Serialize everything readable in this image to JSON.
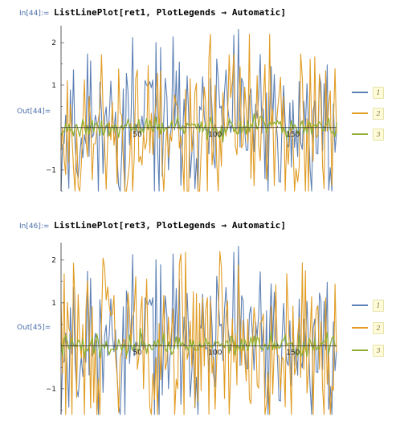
{
  "notebook": {
    "cells": [
      {
        "in_label": "In[44]:=",
        "code": "ListLinePlot[ret1, PlotLegends → Automatic]",
        "out_label": "Out[44]=",
        "plot": {
          "x_ticks": [
            "50",
            "100",
            "150"
          ],
          "y_ticks": [
            "2",
            "1",
            "−1"
          ],
          "legend": [
            "1",
            "2",
            "3"
          ]
        }
      },
      {
        "in_label": "In[46]:=",
        "code": "ListLinePlot[ret3, PlotLegends → Automatic]",
        "out_label": "Out[45]=",
        "plot": {
          "x_ticks": [
            "50",
            "100",
            "150"
          ],
          "y_ticks": [
            "2",
            "1",
            "−1"
          ],
          "legend": [
            "1",
            "2",
            "3"
          ]
        }
      }
    ]
  },
  "colors": {
    "series1": "#5e81b5",
    "series2": "#e19c24",
    "series3": "#8fb032"
  },
  "chart_data": [
    {
      "type": "line",
      "x_range": [
        1,
        178
      ],
      "ylim": [
        -1.5,
        2.4
      ],
      "x_ticks": [
        50,
        100,
        150
      ],
      "y_ticks": [
        -1,
        1,
        2
      ],
      "legend": [
        "1",
        "2",
        "3"
      ],
      "legend_position": "right",
      "series": [
        {
          "seed": 11,
          "amplitude": 0.95,
          "clip": [
            -1.5,
            2.4
          ]
        },
        {
          "seed": 23,
          "amplitude": 1.05,
          "clip": [
            -1.5,
            2.2
          ]
        },
        {
          "seed": 37,
          "amplitude": 0.12,
          "clip": [
            -1.5,
            2.4
          ]
        }
      ]
    },
    {
      "type": "line",
      "x_range": [
        1,
        178
      ],
      "ylim": [
        -1.6,
        2.4
      ],
      "x_ticks": [
        50,
        100,
        150
      ],
      "y_ticks": [
        -1,
        1,
        2
      ],
      "legend": [
        "1",
        "2",
        "3"
      ],
      "legend_position": "right",
      "series": [
        {
          "seed": 11,
          "amplitude": 0.95,
          "clip": [
            -1.6,
            2.4
          ]
        },
        {
          "seed": 29,
          "amplitude": 1.0,
          "clip": [
            -1.6,
            2.2
          ]
        },
        {
          "seed": 41,
          "amplitude": 0.12,
          "clip": [
            -1.6,
            2.4
          ]
        }
      ]
    }
  ]
}
